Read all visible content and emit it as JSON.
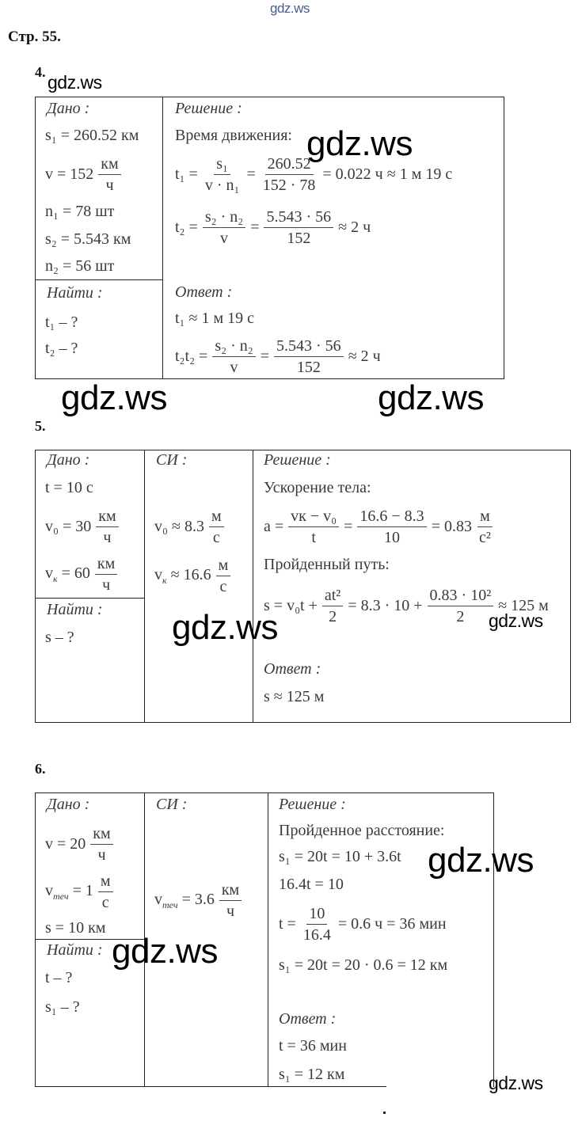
{
  "watermark": "gdz.ws",
  "watermark_top_color": "#4a5a8c",
  "page_label": "Стр. 55.",
  "p4": {
    "number": "4.",
    "given": "Дано :",
    "given_items": [
      "s₁ = 260.52 км",
      "v = 152",
      "n₁ = 78 шт",
      "s₂ = 5.543 км",
      "n₂ = 56 шт"
    ],
    "unit_kmh": {
      "num": "км",
      "den": "ч"
    },
    "find": "Найти :",
    "find_items": [
      "t₁ – ?",
      "t₂ – ?"
    ],
    "solution": "Решение :",
    "solution_title": "Время движения:",
    "f1": {
      "lhs": "t₁ =",
      "fr1": {
        "num": "s₁",
        "den": "v · n₁"
      },
      "eq": "=",
      "fr2": {
        "num": "260.52",
        "den": "152 · 78"
      },
      "rhs": "= 0.022 ч ≈ 1 м 19 с"
    },
    "f2": {
      "lhs": "t₂ =",
      "fr1": {
        "num": "s₂ · n₂",
        "den": "v"
      },
      "eq": "=",
      "fr2": {
        "num": "5.543 · 56",
        "den": "152"
      },
      "rhs": "≈ 2 ч"
    },
    "answer": "Ответ :",
    "answer_1": "t₁ ≈ 1 м 19 с",
    "f3": {
      "lhs": "t₂t₂ =",
      "fr1": {
        "num": "s₂ · n₂",
        "den": "v"
      },
      "eq": "=",
      "fr2": {
        "num": "5.543 · 56",
        "den": "152"
      },
      "rhs": "≈ 2 ч"
    }
  },
  "p5": {
    "number": "5.",
    "given": "Дано :",
    "g1": "t = 10 с",
    "g2": {
      "var": "v₀ = 30",
      "unit": {
        "num": "км",
        "den": "ч"
      }
    },
    "g3": {
      "var": "v",
      "sub": "к",
      "rest": "= 60",
      "unit": {
        "num": "км",
        "den": "ч"
      }
    },
    "find": "Найти :",
    "find_items": [
      "s – ?"
    ],
    "si": "СИ :",
    "si1": {
      "var": "v₀ ≈ 8.3",
      "unit": {
        "num": "м",
        "den": "с"
      }
    },
    "si2": {
      "var": "v",
      "sub": "к",
      "rest": "≈ 16.6",
      "unit": {
        "num": "м",
        "den": "с"
      }
    },
    "solution": "Решение :",
    "s_title1": "Ускорение тела:",
    "fa": {
      "lhs": "a =",
      "fr1": {
        "num": "vк − v₀",
        "den": "t"
      },
      "eq": "=",
      "fr2": {
        "num": "16.6 − 8.3",
        "den": "10"
      },
      "rhs": "= 0.83",
      "unit": {
        "num": "м",
        "den": "с²"
      }
    },
    "s_title2": "Пройденный путь:",
    "fs": {
      "lhs": "s = v₀t +",
      "fr1": {
        "num": "at²",
        "den": "2"
      },
      "mid": "= 8.3 · 10 +",
      "fr2": {
        "num": "0.83 · 10²",
        "den": "2"
      },
      "rhs": "≈ 125 м"
    },
    "answer": "Ответ :",
    "answer_1": "s ≈ 125 м"
  },
  "p6": {
    "number": "6.",
    "given": "Дано :",
    "g1": {
      "var": "v = 20",
      "unit": {
        "num": "км",
        "den": "ч"
      }
    },
    "g2": {
      "var": "v",
      "sub": "теч",
      "rest": "= 1",
      "unit": {
        "num": "м",
        "den": "с"
      }
    },
    "g3": "s = 10 км",
    "find": "Найти :",
    "find_items": [
      "t – ?",
      "s₁ – ?"
    ],
    "si": "СИ :",
    "si1": {
      "var": "v",
      "sub": "теч",
      "rest": "= 3.6",
      "unit": {
        "num": "км",
        "den": "ч"
      }
    },
    "solution": "Решение :",
    "s_title": "Пройденное расстояние:",
    "l1": "s₁ = 20t = 10 + 3.6t",
    "l2": "16.4t = 10",
    "ft": {
      "lhs": "t =",
      "fr": {
        "num": "10",
        "den": "16.4"
      },
      "rhs": "= 0.6 ч = 36 мин"
    },
    "l4": "s₁ = 20t = 20 · 0.6 = 12 км",
    "answer": "Ответ :",
    "answer_1": "t = 36 мин",
    "answer_2": "s₁ = 12 км"
  }
}
